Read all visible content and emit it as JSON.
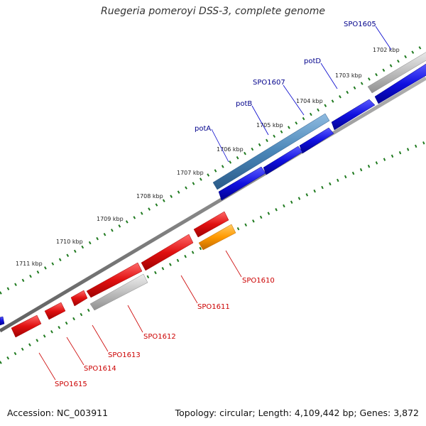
{
  "title": "Ruegeria pomeroyi DSS-3, complete genome",
  "footer": {
    "accession": "Accession: NC_003911",
    "summary": "Topology: circular; Length: 4,109,442 bp; Genes: 3,872"
  },
  "colors": {
    "backbone": "#808080",
    "tick": "#1f7a1f",
    "forward_gene": "#1010e0",
    "reverse_gene": "#e01010",
    "highlight_gene": "#4a86b8",
    "pseudo_gene": "#c0c0c0",
    "other_gene": "#ff9900",
    "forward_label": "#00008b",
    "reverse_label": "#cc0000"
  },
  "ruler_labels": [
    "1702 kbp",
    "1703 kbp",
    "1704 kbp",
    "1705 kbp",
    "1706 kbp",
    "1707 kbp",
    "1708 kbp",
    "1709 kbp",
    "1710 kbp",
    "1711 kbp"
  ],
  "forward_genes": [
    {
      "label": "SPO1605",
      "type": "pseudo"
    },
    {
      "label": "potD",
      "type": "forward"
    },
    {
      "label": "SPO1607",
      "type": "forward"
    },
    {
      "label": "potB",
      "type": "forward"
    },
    {
      "label": "potA",
      "type": "highlight"
    }
  ],
  "reverse_genes": [
    {
      "label": "SPO1610",
      "type": "other"
    },
    {
      "label": "SPO1611",
      "type": "reverse"
    },
    {
      "label": "SPO1612",
      "type": "pseudo"
    },
    {
      "label": "SPO1613",
      "type": "reverse"
    },
    {
      "label": "SPO1614",
      "type": "reverse"
    },
    {
      "label": "SPO1615",
      "type": "reverse"
    }
  ]
}
